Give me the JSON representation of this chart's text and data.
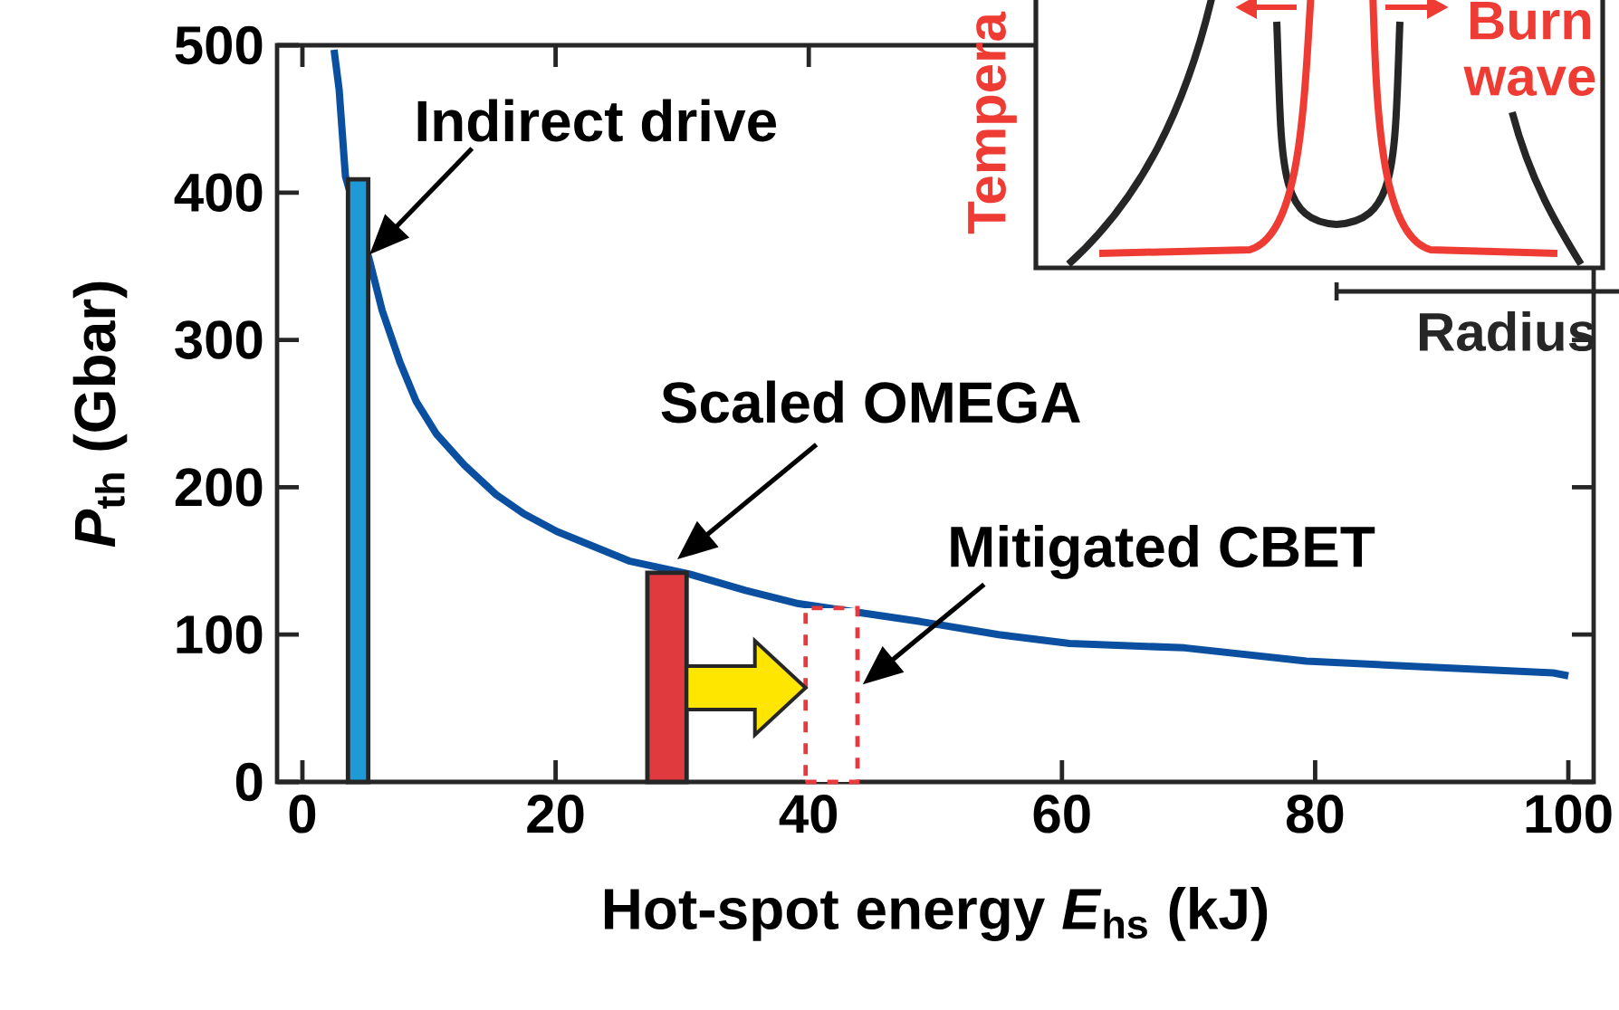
{
  "chart_data": {
    "type": "line",
    "xlabel": "Hot-spot energy *E*$_{hs}$ (kJ)",
    "ylabel": "*P*$_{th}$ (Gbar)",
    "xlim": [
      -2,
      102
    ],
    "ylim": [
      0,
      500
    ],
    "xticks": [
      0,
      20,
      40,
      60,
      80,
      100
    ],
    "yticks": [
      0,
      100,
      200,
      300,
      400,
      500
    ],
    "grid": false,
    "marker": "none",
    "series": [
      {
        "color": "#0b50a0",
        "line_style": "solid",
        "x": [
          2.5,
          2.9,
          3.4,
          4.0,
          5.3,
          6.3,
          7.7,
          9.0,
          10.6,
          12.8,
          15.3,
          17.5,
          20.1,
          25.8,
          30.6,
          35.0,
          39.2,
          48.7,
          55.0,
          60.6,
          69.7,
          79.3,
          88.8,
          98.8,
          100
        ],
        "values": [
          497,
          470,
          411,
          null,
          354,
          320,
          285,
          258,
          236,
          215,
          195,
          182,
          170,
          150,
          141,
          130,
          121,
          109,
          100,
          94,
          91,
          82,
          78,
          74,
          72
        ]
      },
      {
        "type": "bar",
        "color": "#1e9ad6",
        "line_style": "solid",
        "x": [
          4.4
        ],
        "values": [
          409
        ]
      },
      {
        "type": "bar",
        "color": "#e0393e",
        "line_style": "solid",
        "x": [
          28.8
        ],
        "values": [
          142
        ]
      },
      {
        "type": "bar",
        "color": "#e8393d",
        "line_style": "dashed",
        "x": [
          41.8
        ],
        "values": [
          118
        ]
      }
    ],
    "annotations": [
      {
        "text": "Indirect drive",
        "x": 5.3,
        "y": 358
      },
      {
        "text": "Scaled OMEGA",
        "x": 29.6,
        "y": 151
      },
      "Mitigated CBET",
      "Tempera",
      "Burn wave",
      "Radius"
    ]
  }
}
